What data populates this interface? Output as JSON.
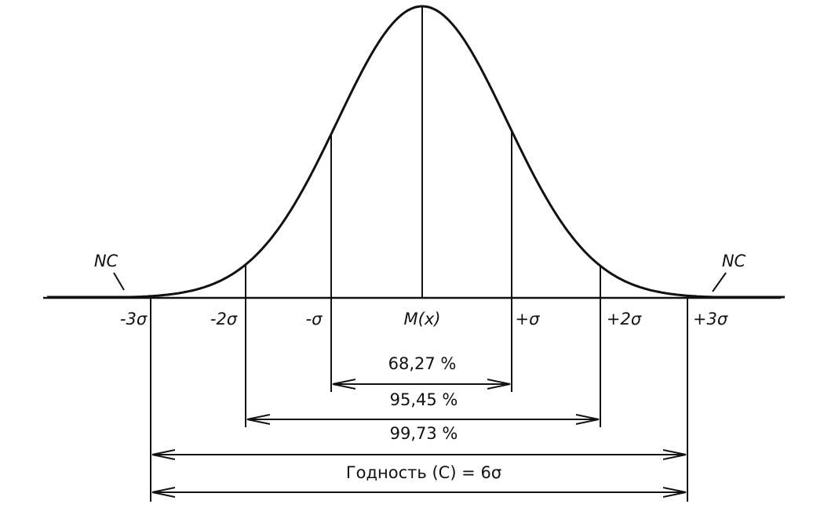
{
  "tail_labels": [
    "NC",
    "NC"
  ],
  "axis_labels": [
    "-3σ",
    "-2σ",
    "-σ",
    "M(x)",
    "+σ",
    "+2σ",
    "+3σ"
  ],
  "intervals": [
    "68,27 %",
    "95,45 %",
    "99,73 %"
  ],
  "capability": "Годность (C) = 6σ"
}
